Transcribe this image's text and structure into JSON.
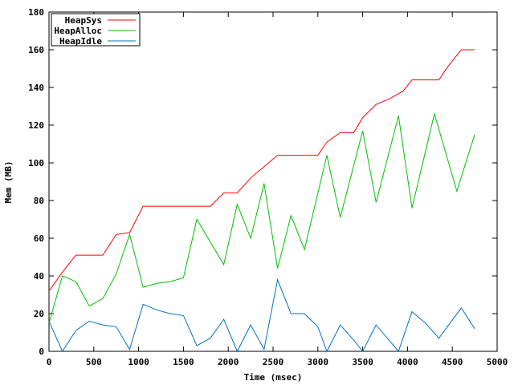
{
  "chart_data": {
    "type": "line",
    "title": "",
    "xlabel": "Time (msec)",
    "ylabel": "Mem (MB)",
    "xlim": [
      0,
      5000
    ],
    "ylim": [
      0,
      180
    ],
    "x_ticks": [
      0,
      500,
      1000,
      1500,
      2000,
      2500,
      3000,
      3500,
      4000,
      4500,
      5000
    ],
    "y_ticks": [
      0,
      20,
      40,
      60,
      80,
      100,
      120,
      140,
      160,
      180
    ],
    "grid": false,
    "legend_position": "top-left",
    "series": [
      {
        "name": "HeapSys",
        "color": "#ff0000",
        "points": [
          [
            0,
            32
          ],
          [
            150,
            42
          ],
          [
            300,
            51
          ],
          [
            450,
            51
          ],
          [
            600,
            51
          ],
          [
            750,
            62
          ],
          [
            900,
            63
          ],
          [
            1050,
            77
          ],
          [
            1200,
            77
          ],
          [
            1350,
            77
          ],
          [
            1500,
            77
          ],
          [
            1650,
            77
          ],
          [
            1800,
            77
          ],
          [
            1950,
            84
          ],
          [
            2100,
            84
          ],
          [
            2250,
            92
          ],
          [
            2400,
            98
          ],
          [
            2550,
            104
          ],
          [
            2700,
            104
          ],
          [
            2850,
            104
          ],
          [
            3000,
            104
          ],
          [
            3100,
            111
          ],
          [
            3250,
            116
          ],
          [
            3400,
            116
          ],
          [
            3500,
            124
          ],
          [
            3650,
            131
          ],
          [
            3800,
            134
          ],
          [
            3950,
            138
          ],
          [
            4050,
            144
          ],
          [
            4200,
            144
          ],
          [
            4350,
            144
          ],
          [
            4450,
            151
          ],
          [
            4600,
            160
          ],
          [
            4750,
            160
          ]
        ]
      },
      {
        "name": "HeapAlloc",
        "color": "#00c000",
        "points": [
          [
            0,
            15
          ],
          [
            150,
            40
          ],
          [
            300,
            37
          ],
          [
            450,
            24
          ],
          [
            600,
            28
          ],
          [
            750,
            41
          ],
          [
            900,
            62
          ],
          [
            1050,
            34
          ],
          [
            1200,
            36
          ],
          [
            1350,
            37
          ],
          [
            1500,
            39
          ],
          [
            1650,
            70
          ],
          [
            1950,
            46
          ],
          [
            2100,
            78
          ],
          [
            2250,
            60
          ],
          [
            2400,
            89
          ],
          [
            2550,
            44
          ],
          [
            2700,
            72
          ],
          [
            2850,
            54
          ],
          [
            3100,
            104
          ],
          [
            3250,
            71
          ],
          [
            3500,
            117
          ],
          [
            3650,
            79
          ],
          [
            3900,
            125
          ],
          [
            4050,
            76
          ],
          [
            4300,
            126
          ],
          [
            4550,
            85
          ],
          [
            4750,
            115
          ]
        ]
      },
      {
        "name": "HeapIdle",
        "color": "#0070c0",
        "points": [
          [
            0,
            16
          ],
          [
            150,
            0
          ],
          [
            300,
            11
          ],
          [
            450,
            16
          ],
          [
            600,
            14
          ],
          [
            750,
            13
          ],
          [
            900,
            1
          ],
          [
            1050,
            25
          ],
          [
            1200,
            22
          ],
          [
            1350,
            20
          ],
          [
            1500,
            19
          ],
          [
            1650,
            3
          ],
          [
            1800,
            7
          ],
          [
            1950,
            17
          ],
          [
            2100,
            0
          ],
          [
            2250,
            14
          ],
          [
            2400,
            1
          ],
          [
            2550,
            38
          ],
          [
            2700,
            20
          ],
          [
            2850,
            20
          ],
          [
            3000,
            13
          ],
          [
            3100,
            0
          ],
          [
            3250,
            14
          ],
          [
            3400,
            6
          ],
          [
            3500,
            0
          ],
          [
            3650,
            14
          ],
          [
            3900,
            0
          ],
          [
            4050,
            21
          ],
          [
            4200,
            15
          ],
          [
            4350,
            7
          ],
          [
            4600,
            23
          ],
          [
            4750,
            12
          ]
        ]
      }
    ]
  }
}
